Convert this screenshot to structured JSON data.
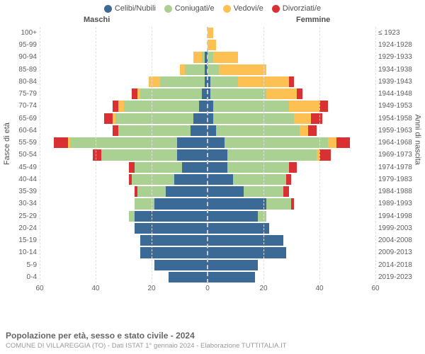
{
  "legend": {
    "items": [
      {
        "label": "Celibi/Nubili",
        "color": "#3b6a97"
      },
      {
        "label": "Coniugati/e",
        "color": "#aad092"
      },
      {
        "label": "Vedovi/e",
        "color": "#fdc153"
      },
      {
        "label": "Divorziati/e",
        "color": "#d93034"
      }
    ]
  },
  "headers": {
    "male": "Maschi",
    "female": "Femmine"
  },
  "axes": {
    "y_left_title": "Fasce di età",
    "y_right_title": "Anni di nascita",
    "x_ticks": [
      60,
      40,
      20,
      0,
      20,
      40,
      60
    ],
    "x_max": 60
  },
  "colors": {
    "single": "#3b6a97",
    "married": "#aad092",
    "widowed": "#fdc153",
    "divorced": "#d93034",
    "grid": "#e0e0e0",
    "center": "#cccccc",
    "background": "#ffffff"
  },
  "rows": [
    {
      "age": "100+",
      "birth": "≤ 1923",
      "m": [
        0,
        0,
        0,
        0
      ],
      "f": [
        0,
        0,
        2,
        0
      ]
    },
    {
      "age": "95-99",
      "birth": "1924-1928",
      "m": [
        0,
        0,
        0,
        0
      ],
      "f": [
        0,
        0,
        3,
        0
      ]
    },
    {
      "age": "90-94",
      "birth": "1929-1933",
      "m": [
        1,
        1,
        3,
        0
      ],
      "f": [
        0,
        2,
        9,
        0
      ]
    },
    {
      "age": "85-89",
      "birth": "1934-1938",
      "m": [
        1,
        7,
        2,
        0
      ],
      "f": [
        0,
        4,
        17,
        0
      ]
    },
    {
      "age": "80-84",
      "birth": "1939-1943",
      "m": [
        1,
        16,
        4,
        0
      ],
      "f": [
        1,
        10,
        18,
        2
      ]
    },
    {
      "age": "75-79",
      "birth": "1944-1948",
      "m": [
        2,
        22,
        1,
        2
      ],
      "f": [
        1,
        20,
        11,
        2
      ]
    },
    {
      "age": "70-74",
      "birth": "1949-1953",
      "m": [
        3,
        27,
        2,
        2
      ],
      "f": [
        2,
        27,
        11,
        3
      ]
    },
    {
      "age": "65-69",
      "birth": "1954-1958",
      "m": [
        5,
        28,
        1,
        3
      ],
      "f": [
        2,
        29,
        6,
        4
      ]
    },
    {
      "age": "60-64",
      "birth": "1959-1963",
      "m": [
        6,
        26,
        0,
        2
      ],
      "f": [
        3,
        30,
        3,
        3
      ]
    },
    {
      "age": "55-59",
      "birth": "1964-1968",
      "m": [
        11,
        38,
        1,
        5
      ],
      "f": [
        6,
        37,
        3,
        5
      ]
    },
    {
      "age": "50-54",
      "birth": "1969-1973",
      "m": [
        11,
        27,
        0,
        3
      ],
      "f": [
        7,
        32,
        1,
        4
      ]
    },
    {
      "age": "45-49",
      "birth": "1974-1978",
      "m": [
        9,
        17,
        0,
        2
      ],
      "f": [
        7,
        22,
        0,
        3
      ]
    },
    {
      "age": "40-44",
      "birth": "1979-1983",
      "m": [
        12,
        15,
        0,
        1
      ],
      "f": [
        9,
        19,
        0,
        2
      ]
    },
    {
      "age": "35-39",
      "birth": "1984-1988",
      "m": [
        15,
        10,
        0,
        1
      ],
      "f": [
        13,
        14,
        0,
        2
      ]
    },
    {
      "age": "30-34",
      "birth": "1989-1993",
      "m": [
        19,
        7,
        0,
        0
      ],
      "f": [
        21,
        9,
        0,
        1
      ]
    },
    {
      "age": "25-29",
      "birth": "1994-1998",
      "m": [
        26,
        2,
        0,
        0
      ],
      "f": [
        18,
        3,
        0,
        0
      ]
    },
    {
      "age": "20-24",
      "birth": "1999-2003",
      "m": [
        26,
        0,
        0,
        0
      ],
      "f": [
        22,
        0,
        0,
        0
      ]
    },
    {
      "age": "15-19",
      "birth": "2004-2008",
      "m": [
        24,
        0,
        0,
        0
      ],
      "f": [
        27,
        0,
        0,
        0
      ]
    },
    {
      "age": "10-14",
      "birth": "2009-2013",
      "m": [
        24,
        0,
        0,
        0
      ],
      "f": [
        28,
        0,
        0,
        0
      ]
    },
    {
      "age": "5-9",
      "birth": "2014-2018",
      "m": [
        19,
        0,
        0,
        0
      ],
      "f": [
        18,
        0,
        0,
        0
      ]
    },
    {
      "age": "0-4",
      "birth": "2019-2023",
      "m": [
        14,
        0,
        0,
        0
      ],
      "f": [
        17,
        0,
        0,
        0
      ]
    }
  ],
  "footer": {
    "title": "Popolazione per età, sesso e stato civile - 2024",
    "source": "COMUNE DI VILLAREGGIA (TO) - Dati ISTAT 1° gennaio 2024 - Elaborazione TUTTITALIA.IT"
  }
}
